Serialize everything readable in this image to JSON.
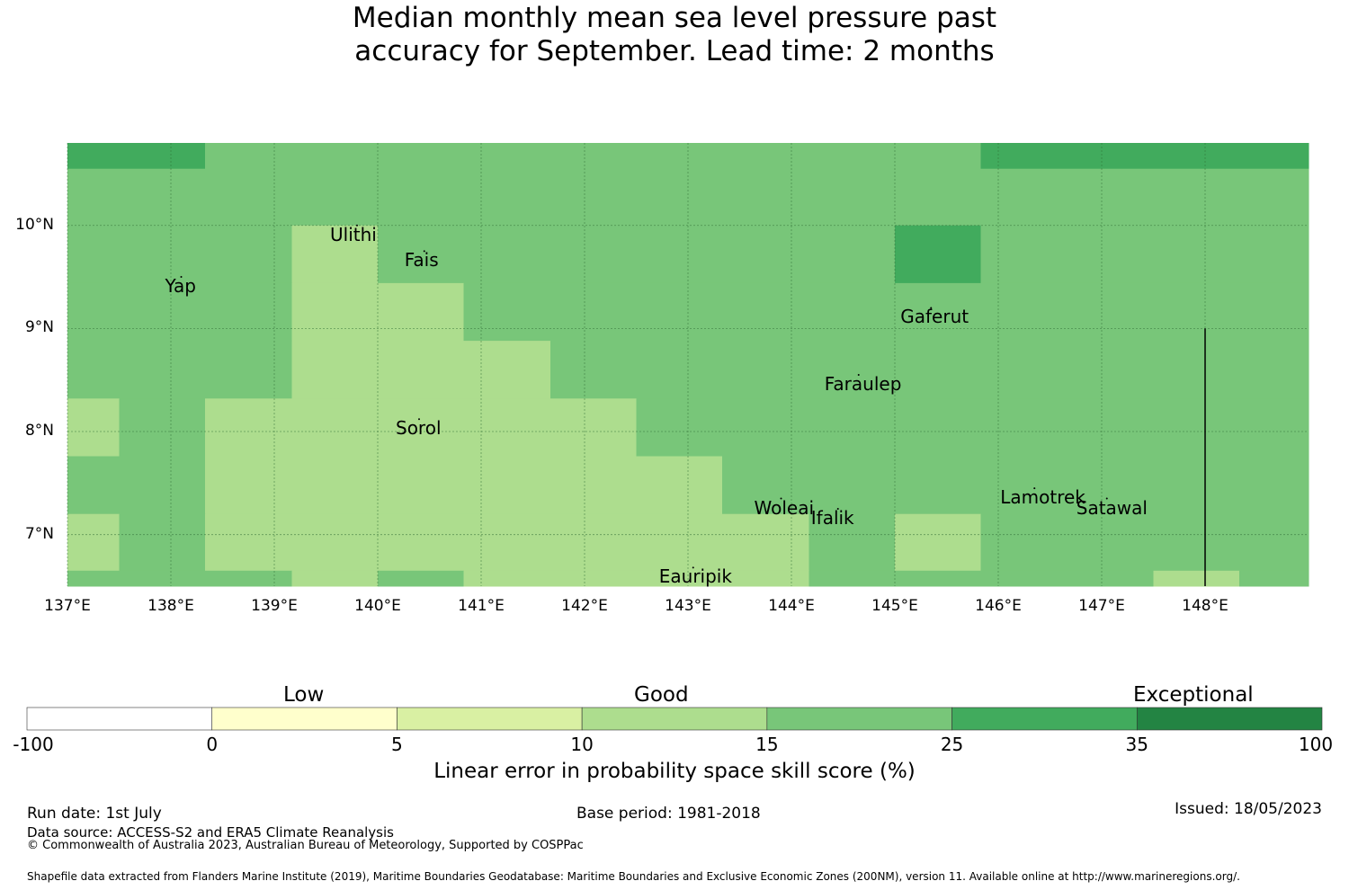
{
  "title": {
    "line1": "Median monthly mean sea level pressure past",
    "line2": "accuracy for September. Lead time: 2 months"
  },
  "map": {
    "lat_range": [
      6.5,
      10.8
    ],
    "lon_range": [
      137.0,
      149.0
    ],
    "lat_ticks": [
      {
        "value": 10,
        "label": "10°N"
      },
      {
        "value": 9,
        "label": "9°N"
      },
      {
        "value": 8,
        "label": "8°N"
      },
      {
        "value": 7,
        "label": "7°N"
      }
    ],
    "lon_ticks": [
      {
        "value": 137,
        "label": "137°E"
      },
      {
        "value": 138,
        "label": "138°E"
      },
      {
        "value": 139,
        "label": "139°E"
      },
      {
        "value": 140,
        "label": "140°E"
      },
      {
        "value": 141,
        "label": "141°E"
      },
      {
        "value": 142,
        "label": "142°E"
      },
      {
        "value": 143,
        "label": "143°E"
      },
      {
        "value": 144,
        "label": "144°E"
      },
      {
        "value": 145,
        "label": "145°E"
      },
      {
        "value": 146,
        "label": "146°E"
      },
      {
        "value": 147,
        "label": "147°E"
      },
      {
        "value": 148,
        "label": "148°E"
      }
    ],
    "grid_cells_note": "",
    "grid_rows": [
      {
        "lat_top": 10.8,
        "lat_bottom": 10.55,
        "cells": [
          [
            137.0,
            138.33,
            "c5"
          ],
          [
            138.33,
            145.83,
            "c4"
          ],
          [
            145.83,
            149.0,
            "c5"
          ]
        ]
      },
      {
        "lat_top": 10.55,
        "lat_bottom": 10.0,
        "cells": [
          [
            137.0,
            149.0,
            "c4"
          ]
        ]
      },
      {
        "lat_top": 10.0,
        "lat_bottom": 9.44,
        "cells": [
          [
            137.0,
            139.17,
            "c4"
          ],
          [
            139.17,
            140.0,
            "c3"
          ],
          [
            140.0,
            145.0,
            "c4"
          ],
          [
            145.0,
            145.83,
            "c5"
          ],
          [
            145.83,
            149.0,
            "c4"
          ]
        ]
      },
      {
        "lat_top": 9.44,
        "lat_bottom": 8.88,
        "cells": [
          [
            137.0,
            139.17,
            "c4"
          ],
          [
            139.17,
            140.83,
            "c3"
          ],
          [
            140.83,
            149.0,
            "c4"
          ]
        ]
      },
      {
        "lat_top": 8.88,
        "lat_bottom": 8.32,
        "cells": [
          [
            137.0,
            139.17,
            "c4"
          ],
          [
            139.17,
            141.67,
            "c3"
          ],
          [
            141.67,
            149.0,
            "c4"
          ]
        ]
      },
      {
        "lat_top": 8.32,
        "lat_bottom": 7.76,
        "cells": [
          [
            137.0,
            137.5,
            "c3"
          ],
          [
            137.5,
            138.33,
            "c4"
          ],
          [
            138.33,
            142.5,
            "c3"
          ],
          [
            142.5,
            149.0,
            "c4"
          ]
        ]
      },
      {
        "lat_top": 7.76,
        "lat_bottom": 7.2,
        "cells": [
          [
            137.0,
            138.33,
            "c4"
          ],
          [
            138.33,
            143.33,
            "c3"
          ],
          [
            143.33,
            149.0,
            "c4"
          ]
        ]
      },
      {
        "lat_top": 7.2,
        "lat_bottom": 6.65,
        "cells": [
          [
            137.0,
            137.5,
            "c3"
          ],
          [
            137.5,
            138.33,
            "c4"
          ],
          [
            138.33,
            144.17,
            "c3"
          ],
          [
            144.17,
            145.0,
            "c4"
          ],
          [
            145.0,
            145.83,
            "c3"
          ],
          [
            145.83,
            149.0,
            "c4"
          ]
        ]
      },
      {
        "lat_top": 6.65,
        "lat_bottom": 6.5,
        "cells": [
          [
            137.0,
            139.17,
            "c4"
          ],
          [
            139.17,
            140.0,
            "c3"
          ],
          [
            140.0,
            140.83,
            "c4"
          ],
          [
            140.83,
            144.17,
            "c3"
          ],
          [
            144.17,
            147.5,
            "c4"
          ],
          [
            147.5,
            148.33,
            "c3"
          ],
          [
            148.33,
            149.0,
            "c4"
          ]
        ]
      }
    ],
    "eez_line": {
      "lon": 148.0,
      "lat_top": 9.0,
      "lat_bottom": 6.5
    },
    "places": [
      {
        "name": "Ulithi",
        "lon": 139.8,
        "lat": 10.0
      },
      {
        "name": "Fais",
        "lon": 140.45,
        "lat": 9.75
      },
      {
        "name": "Yap",
        "lon": 138.1,
        "lat": 9.5
      },
      {
        "name": "Gaferut",
        "lon": 145.35,
        "lat": 9.2
      },
      {
        "name": "Faraulep",
        "lon": 144.65,
        "lat": 8.55
      },
      {
        "name": "Sorol",
        "lon": 140.4,
        "lat": 8.12
      },
      {
        "name": "Woleai",
        "lon": 143.9,
        "lat": 7.35
      },
      {
        "name": "Ifalik",
        "lon": 144.45,
        "lat": 7.25
      },
      {
        "name": "Lamotrek",
        "lon": 146.35,
        "lat": 7.45
      },
      {
        "name": "Satawal",
        "lon": 147.05,
        "lat": 7.35
      },
      {
        "name": "Eauripik",
        "lon": 143.05,
        "lat": 6.68
      }
    ]
  },
  "colorbar": {
    "categories": [
      {
        "label": "Low"
      },
      {
        "label": "Good"
      },
      {
        "label": "Exceptional"
      }
    ],
    "bins": [
      {
        "color": "#ffffff"
      },
      {
        "color": "#ffffcc"
      },
      {
        "color": "#d9f0a3"
      },
      {
        "color": "#addd8e"
      },
      {
        "color": "#78c679"
      },
      {
        "color": "#41ab5d"
      },
      {
        "color": "#238443"
      }
    ],
    "ticks": [
      "-100",
      "0",
      "5",
      "10",
      "15",
      "25",
      "35",
      "100"
    ],
    "label": "Linear error in probability space skill score (%)"
  },
  "colors": {
    "c3": "#addd8e",
    "c4": "#78c679",
    "c5": "#41ab5d"
  },
  "footer": {
    "run_date": "Run date: 1st July",
    "base_period": "Base period: 1981-2018",
    "issued": "Issued: 18/05/2023",
    "data_source": "Data source: ACCESS-S2 and ERA5 Climate Reanalysis",
    "copyright": "© Commonwealth of Australia 2023, Australian Bureau of Meteorology, Supported by COSPPac",
    "shapefile": "Shapefile data extracted from Flanders Marine Institute (2019), Maritime Boundaries Geodatabase: Maritime Boundaries and Exclusive Economic Zones (200NM), version 11. Available online at http://www.marineregions.org/."
  }
}
